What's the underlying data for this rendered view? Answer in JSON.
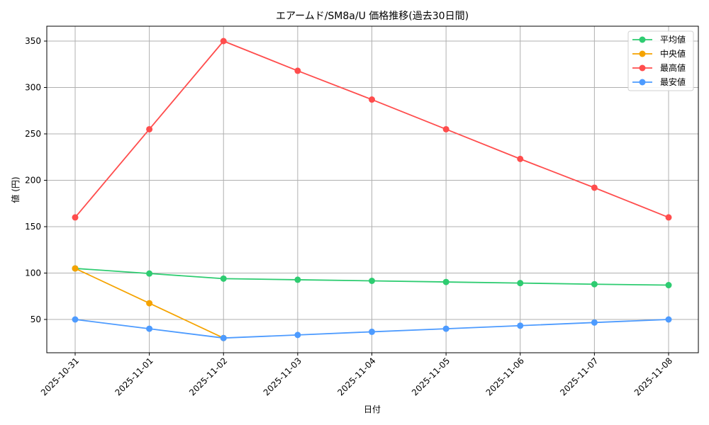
{
  "chart_data": {
    "type": "line",
    "title": "エアームド/SM8a/U 価格推移(過去30日間)",
    "xlabel": "日付",
    "ylabel": "値 (円)",
    "x": [
      "2025-10-31",
      "2025-11-01",
      "2025-11-02",
      "2025-11-03",
      "2025-11-04",
      "2025-11-05",
      "2025-11-06",
      "2025-11-07",
      "2025-11-08"
    ],
    "ylim": [
      13,
      366
    ],
    "yticks": [
      50,
      100,
      150,
      200,
      250,
      300,
      350
    ],
    "grid": true,
    "legend_position": "upper right",
    "series": [
      {
        "name": "平均値",
        "color": "#2ecc71",
        "values": [
          105,
          99.5,
          94,
          92.8,
          91.6,
          90.4,
          89.2,
          88,
          87
        ]
      },
      {
        "name": "中央値",
        "color": "#f5a300",
        "values": [
          105,
          67.5,
          30,
          null,
          null,
          null,
          null,
          null,
          null
        ]
      },
      {
        "name": "最高値",
        "color": "#ff4d4d",
        "values": [
          160,
          255,
          350,
          318,
          287,
          255,
          223,
          192,
          160
        ]
      },
      {
        "name": "最安値",
        "color": "#4d9bff",
        "values": [
          50,
          40,
          30,
          33.3,
          36.7,
          40,
          43.3,
          46.7,
          50
        ]
      }
    ]
  }
}
